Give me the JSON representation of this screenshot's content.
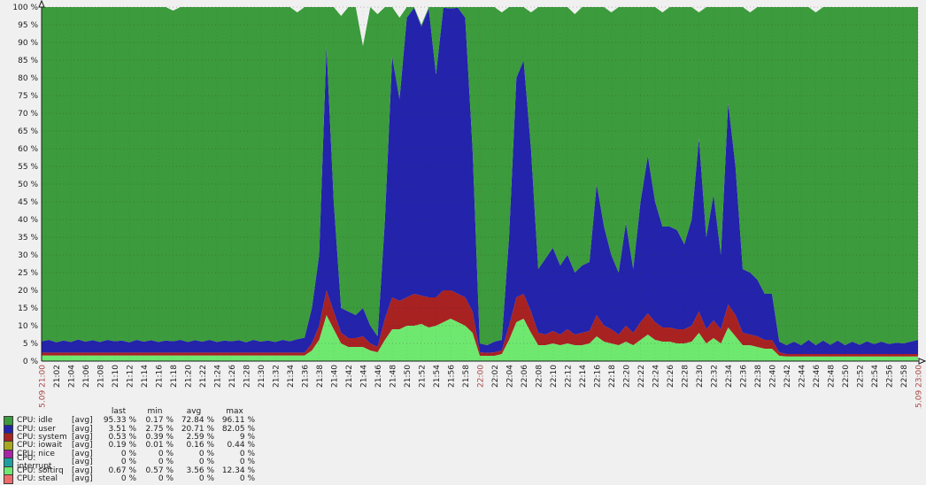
{
  "app": {
    "background": "#f0f0f0",
    "text_color": "#1c1c1c",
    "red_label_color": "#a94444"
  },
  "chart_data": {
    "type": "area",
    "stacked": true,
    "title": "",
    "xlabel": "",
    "ylabel": "",
    "ylim": [
      0,
      100
    ],
    "y_step": 5,
    "y_suffix": " %",
    "grid": true,
    "legend_position": "bottom-left",
    "y_tick_labels": [
      "0 %",
      "5 %",
      "10 %",
      "15 %",
      "20 %",
      "25 %",
      "30 %",
      "35 %",
      "40 %",
      "45 %",
      "50 %",
      "55 %",
      "60 %",
      "65 %",
      "70 %",
      "75 %",
      "80 %",
      "85 %",
      "90 %",
      "95 %",
      "100 %"
    ],
    "x_tick_labels": [
      "15.09 21:00",
      "21:02",
      "21:04",
      "21:06",
      "21:08",
      "21:10",
      "21:12",
      "21:14",
      "21:16",
      "21:18",
      "21:20",
      "21:22",
      "21:24",
      "21:26",
      "21:28",
      "21:30",
      "21:32",
      "21:34",
      "21:36",
      "21:38",
      "21:40",
      "21:42",
      "21:44",
      "21:46",
      "21:48",
      "21:50",
      "21:52",
      "21:54",
      "21:56",
      "21:58",
      "22:00",
      "22:02",
      "22:04",
      "22:06",
      "22:08",
      "22:10",
      "22:12",
      "22:14",
      "22:16",
      "22:18",
      "22:20",
      "22:22",
      "22:24",
      "22:26",
      "22:28",
      "22:30",
      "22:32",
      "22:34",
      "22:36",
      "22:38",
      "22:40",
      "22:42",
      "22:44",
      "22:46",
      "22:48",
      "22:50",
      "22:52",
      "22:54",
      "22:56",
      "22:58",
      "15.09 23:00"
    ],
    "x_red_tick_indices": [
      0,
      30,
      60
    ],
    "x_minutes_span": 120,
    "stack_bottom_to_top": [
      "CPU: softirq",
      "CPU: system",
      "CPU: user",
      "CPU: idle"
    ],
    "series": [
      {
        "name": "CPU: idle",
        "color": "#3C9B3C",
        "values": [
          94.4,
          94.0,
          94.7,
          94.2,
          94.6,
          93.9,
          94.5,
          94.1,
          94.6,
          94.0,
          94.4,
          94.2,
          94.7,
          94.0,
          94.5,
          94.1,
          94.6,
          94.2,
          93.4,
          94.0,
          94.6,
          94.1,
          94.5,
          94.0,
          94.6,
          94.2,
          94.4,
          94.1,
          94.7,
          94.0,
          94.5,
          94.2,
          94.6,
          94.0,
          94.4,
          92.3,
          93.4,
          85,
          70,
          11,
          55,
          82.5,
          86,
          87,
          74,
          90,
          91,
          60,
          14,
          23,
          3,
          0.2,
          0.5,
          0.4,
          19,
          0.2,
          0.4,
          0.2,
          3,
          40,
          95,
          95.5,
          94.5,
          92.5,
          65,
          20,
          15,
          38.5,
          74,
          71,
          68,
          73,
          70,
          73,
          73,
          72,
          50,
          62,
          68.5,
          75,
          61,
          74,
          55,
          42,
          55,
          60.5,
          62,
          63,
          67,
          60,
          35.5,
          65,
          53,
          70,
          27,
          45,
          74,
          73.5,
          77,
          81,
          81,
          94.5,
          95.5,
          94.5,
          95.5,
          94.0,
          94.0,
          94.2,
          95.4,
          94.2,
          95.5,
          94.5,
          95.4,
          94.4,
          95.2,
          94.5,
          95.2,
          94.8,
          95.0,
          94.5,
          94.0
        ]
      },
      {
        "name": "CPU: user",
        "color": "#2323AC",
        "values": [
          3.2,
          3.6,
          2.9,
          3.4,
          3.0,
          3.7,
          3.1,
          3.5,
          3.0,
          3.6,
          3.2,
          3.4,
          2.9,
          3.6,
          3.1,
          3.5,
          3.0,
          3.4,
          3.2,
          3.6,
          3.0,
          3.5,
          3.1,
          3.6,
          3.0,
          3.4,
          3.2,
          3.5,
          2.9,
          3.6,
          3.1,
          3.4,
          3.0,
          3.6,
          3.2,
          3.8,
          4.2,
          10,
          20,
          69,
          31,
          7,
          7.5,
          6.5,
          8,
          5,
          3,
          28,
          68,
          57,
          79,
          80.8,
          76,
          81.6,
          63,
          79.8,
          79.6,
          80.8,
          79,
          46,
          2.5,
          2.2,
          3,
          3,
          25,
          62,
          66,
          46,
          18,
          21.5,
          23.5,
          19.5,
          21,
          17.5,
          19,
          19.5,
          37,
          28,
          21,
          17.5,
          29,
          18,
          34,
          44.5,
          34,
          28.5,
          28.5,
          28,
          24,
          30,
          49,
          26,
          35.5,
          21,
          57,
          42,
          18,
          17.5,
          16,
          13,
          13,
          3,
          2.5,
          3.5,
          2.5,
          4.0,
          2.5,
          3.8,
          2.6,
          3.8,
          2.5,
          3.5,
          2.6,
          3.6,
          2.8,
          3.5,
          2.8,
          3.2,
          3.0,
          3.5,
          4.0
        ]
      },
      {
        "name": "CPU: system",
        "color": "#A82222",
        "values": [
          0.8,
          0.8,
          0.8,
          0.8,
          0.8,
          0.8,
          0.8,
          0.8,
          0.8,
          0.8,
          0.8,
          0.8,
          0.8,
          0.8,
          0.8,
          0.8,
          0.8,
          0.8,
          0.8,
          0.8,
          0.8,
          0.8,
          0.8,
          0.8,
          0.8,
          0.8,
          0.8,
          0.8,
          0.8,
          0.8,
          0.8,
          0.8,
          0.8,
          0.8,
          0.8,
          0.8,
          0.8,
          2,
          4,
          7,
          5,
          3,
          2.5,
          2.5,
          3,
          2,
          1.5,
          6,
          9,
          8,
          8,
          9,
          8,
          8.5,
          8,
          9,
          8,
          8,
          8,
          6,
          1,
          0.8,
          1,
          1,
          4,
          7,
          7,
          6,
          3.5,
          3,
          3.5,
          3,
          4,
          3,
          3.5,
          3.5,
          6,
          4.5,
          4,
          3,
          4.5,
          3.5,
          5,
          6,
          5,
          4,
          4,
          4,
          4,
          4.5,
          6,
          4,
          5,
          4,
          6.5,
          6,
          3.5,
          3,
          3,
          2.5,
          2.5,
          1,
          0.7,
          0.7,
          0.7,
          0.7,
          0.7,
          0.7,
          0.7,
          0.7,
          0.7,
          0.7,
          0.7,
          0.7,
          0.7,
          0.7,
          0.7,
          0.7,
          0.7,
          0.7,
          0.7
        ]
      },
      {
        "name": "CPU: iowait",
        "color": "#A8A81E",
        "values": "zero"
      },
      {
        "name": "CPU: nice",
        "color": "#A823A8",
        "values": "zero"
      },
      {
        "name": "CPU: interrupt",
        "color": "#1E9E9E",
        "values": "zero"
      },
      {
        "name": "CPU: softirq",
        "color": "#6FE86F",
        "values": [
          1.6,
          1.6,
          1.6,
          1.6,
          1.6,
          1.6,
          1.6,
          1.6,
          1.6,
          1.6,
          1.6,
          1.6,
          1.6,
          1.6,
          1.6,
          1.6,
          1.6,
          1.6,
          1.6,
          1.6,
          1.6,
          1.6,
          1.6,
          1.6,
          1.6,
          1.6,
          1.6,
          1.6,
          1.6,
          1.6,
          1.6,
          1.6,
          1.6,
          1.6,
          1.6,
          1.6,
          1.6,
          3,
          6,
          13,
          9,
          5,
          4,
          4,
          4,
          3,
          2.5,
          6,
          9,
          9,
          10,
          10,
          10.5,
          9.5,
          10,
          11,
          12,
          11,
          10,
          8,
          1.5,
          1.5,
          1.5,
          2,
          6,
          11,
          12,
          8,
          4.5,
          4.5,
          5,
          4.5,
          5,
          4.5,
          4.5,
          5,
          7,
          5.5,
          5,
          4.5,
          5.5,
          4.5,
          6,
          7.5,
          6,
          5.5,
          5.5,
          5,
          5,
          5.5,
          8,
          5,
          6.5,
          5,
          9.5,
          7,
          4.5,
          4.5,
          4,
          3.5,
          3.5,
          1.5,
          1.3,
          1.3,
          1.3,
          1.3,
          1.3,
          1.3,
          1.3,
          1.3,
          1.3,
          1.3,
          1.3,
          1.3,
          1.3,
          1.3,
          1.3,
          1.3,
          1.3,
          1.3,
          1.3
        ]
      },
      {
        "name": "CPU: steal",
        "color": "#EE6A6A",
        "values": "zero"
      }
    ]
  },
  "legend": {
    "headers": [
      "last",
      "min",
      "avg",
      "max"
    ],
    "rows": [
      {
        "name": "CPU: idle",
        "fn": "[avg]",
        "color": "#3C9B3C",
        "last": "95.33 %",
        "min": "0.17 %",
        "avg": "72.84 %",
        "max": "96.11 %"
      },
      {
        "name": "CPU: user",
        "fn": "[avg]",
        "color": "#2323AC",
        "last": "3.51 %",
        "min": "2.75 %",
        "avg": "20.71 %",
        "max": "82.05 %"
      },
      {
        "name": "CPU: system",
        "fn": "[avg]",
        "color": "#A82222",
        "last": "0.53 %",
        "min": "0.39 %",
        "avg": "2.59 %",
        "max": "9 %"
      },
      {
        "name": "CPU: iowait",
        "fn": "[avg]",
        "color": "#A8A81E",
        "last": "0.19 %",
        "min": "0.01 %",
        "avg": "0.16 %",
        "max": "0.44 %"
      },
      {
        "name": "CPU: nice",
        "fn": "[avg]",
        "color": "#A823A8",
        "last": "0 %",
        "min": "0 %",
        "avg": "0 %",
        "max": "0 %"
      },
      {
        "name": "CPU: interrupt",
        "fn": "[avg]",
        "color": "#1E9E9E",
        "last": "0 %",
        "min": "0 %",
        "avg": "0 %",
        "max": "0 %"
      },
      {
        "name": "CPU: softirq",
        "fn": "[avg]",
        "color": "#6FE86F",
        "last": "0.67 %",
        "min": "0.57 %",
        "avg": "3.56 %",
        "max": "12.34 %"
      },
      {
        "name": "CPU: steal",
        "fn": "[avg]",
        "color": "#EE6A6A",
        "last": "0 %",
        "min": "0 %",
        "avg": "0 %",
        "max": "0 %"
      }
    ]
  }
}
